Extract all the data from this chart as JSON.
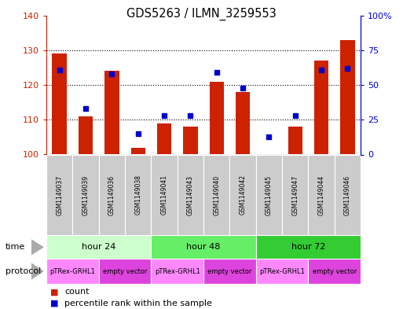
{
  "title": "GDS5263 / ILMN_3259553",
  "samples": [
    "GSM1149037",
    "GSM1149039",
    "GSM1149036",
    "GSM1149038",
    "GSM1149041",
    "GSM1149043",
    "GSM1149040",
    "GSM1149042",
    "GSM1149045",
    "GSM1149047",
    "GSM1149044",
    "GSM1149046"
  ],
  "count_values": [
    129,
    111,
    124,
    102,
    109,
    108,
    121,
    118,
    100,
    108,
    127,
    133
  ],
  "percentile_values": [
    61,
    33,
    58,
    15,
    28,
    28,
    59,
    48,
    13,
    28,
    61,
    62
  ],
  "ylim_left": [
    100,
    140
  ],
  "ylim_right": [
    0,
    100
  ],
  "yticks_left": [
    100,
    110,
    120,
    130,
    140
  ],
  "yticks_right": [
    0,
    25,
    50,
    75,
    100
  ],
  "ytick_labels_right": [
    "0",
    "25",
    "50",
    "75",
    "100%"
  ],
  "time_groups": [
    {
      "label": "hour 24",
      "start": 0,
      "end": 4,
      "color": "#CCFFCC"
    },
    {
      "label": "hour 48",
      "start": 4,
      "end": 8,
      "color": "#66EE66"
    },
    {
      "label": "hour 72",
      "start": 8,
      "end": 12,
      "color": "#33CC33"
    }
  ],
  "protocol_groups": [
    {
      "label": "pTRex-GRHL1",
      "start": 0,
      "end": 2,
      "color": "#FF88FF"
    },
    {
      "label": "empty vector",
      "start": 2,
      "end": 4,
      "color": "#DD44DD"
    },
    {
      "label": "pTRex-GRHL1",
      "start": 4,
      "end": 6,
      "color": "#FF88FF"
    },
    {
      "label": "empty vector",
      "start": 6,
      "end": 8,
      "color": "#DD44DD"
    },
    {
      "label": "pTRex-GRHL1",
      "start": 8,
      "end": 10,
      "color": "#FF88FF"
    },
    {
      "label": "empty vector",
      "start": 10,
      "end": 12,
      "color": "#DD44DD"
    }
  ],
  "bar_color": "#CC2200",
  "dot_color": "#0000CC",
  "bg_color": "#FFFFFF",
  "sample_bg_color": "#CCCCCC",
  "left_axis_color": "#CC2200",
  "right_axis_color": "#0000CC",
  "grid_yticks": [
    110,
    120,
    130
  ]
}
